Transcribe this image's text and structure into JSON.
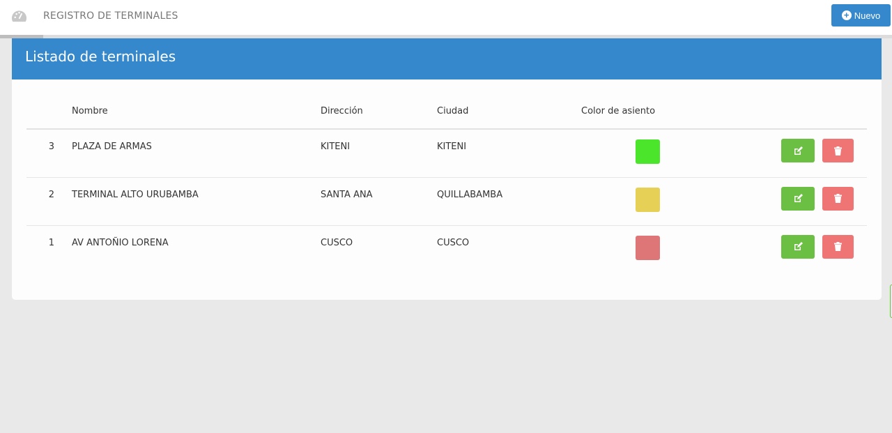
{
  "header": {
    "title": "REGISTRO DE TERMINALES",
    "new_button": "Nuevo"
  },
  "card": {
    "title": "Listado de terminales"
  },
  "table": {
    "columns": [
      "",
      "Nombre",
      "Dirección",
      "Ciudad",
      "Color de asiento",
      ""
    ],
    "rows": [
      {
        "id": "3",
        "nombre": "PLAZA DE ARMAS",
        "direccion": "KITENI",
        "ciudad": "KITENI",
        "color": "#4be62b"
      },
      {
        "id": "2",
        "nombre": "TERMINAL ALTO URUBAMBA",
        "direccion": "SANTA ANA",
        "ciudad": "QUILLABAMBA",
        "color": "#e6d055"
      },
      {
        "id": "1",
        "nombre": "AV ANTOÑIO LORENA",
        "direccion": "CUSCO",
        "ciudad": "CUSCO",
        "color": "#de7678"
      }
    ]
  },
  "colors": {
    "primary": "#3588cc",
    "edit": "#6bbf42",
    "delete": "#ef7474"
  }
}
